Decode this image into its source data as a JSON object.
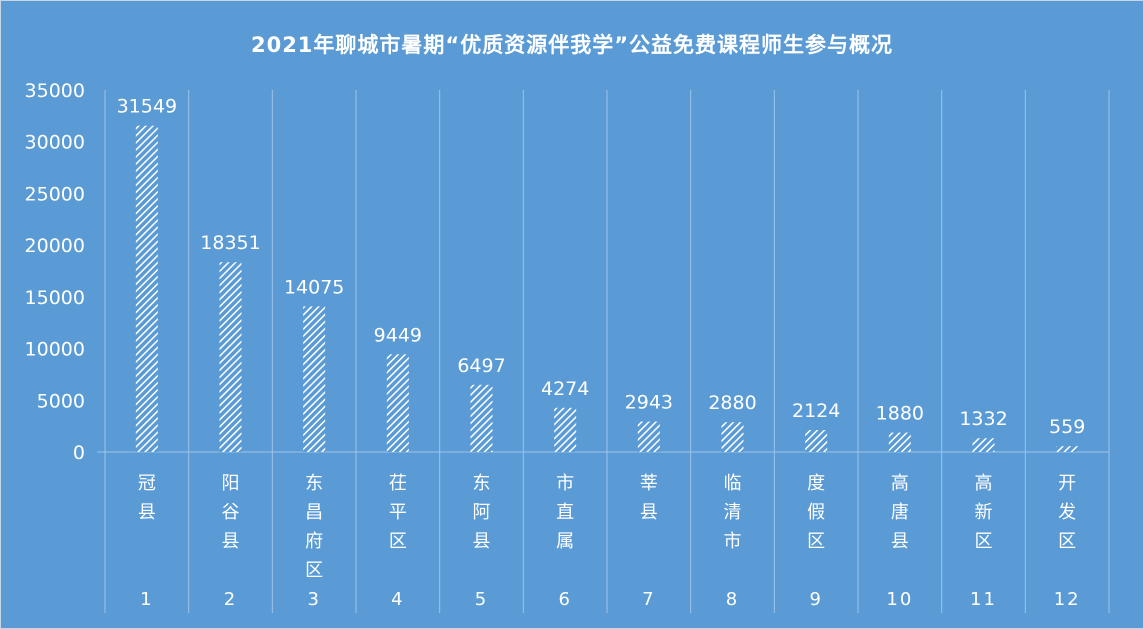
{
  "chart_data": {
    "type": "bar",
    "title": "2021年聊城市暑期“优质资源伴我学”公益免费课程师生参与概况",
    "categories": [
      "冠县",
      "阳谷县",
      "东昌府区",
      "茌平区",
      "东阿县",
      "市直属",
      "莘县",
      "临清市",
      "度假区",
      "高唐县",
      "高新区",
      "开发区"
    ],
    "groups": [
      "1",
      "2",
      "3",
      "4",
      "5",
      "6",
      "7",
      "8",
      "9",
      "10",
      "11",
      "12"
    ],
    "values": [
      31549,
      18351,
      14075,
      9449,
      6497,
      4274,
      2943,
      2880,
      2124,
      1880,
      1332,
      559
    ],
    "yticks": [
      "0",
      "5000",
      "10000",
      "15000",
      "20000",
      "25000",
      "30000",
      "35000"
    ],
    "ylim": [
      0,
      35000
    ],
    "xlabel": "",
    "ylabel": "",
    "grid": "vertical",
    "legend": "none",
    "colors": {
      "background": "#5b9bd5",
      "bar_fill": "#ffffff",
      "text": "#ffffff",
      "axis": "#9ec3e6"
    }
  }
}
